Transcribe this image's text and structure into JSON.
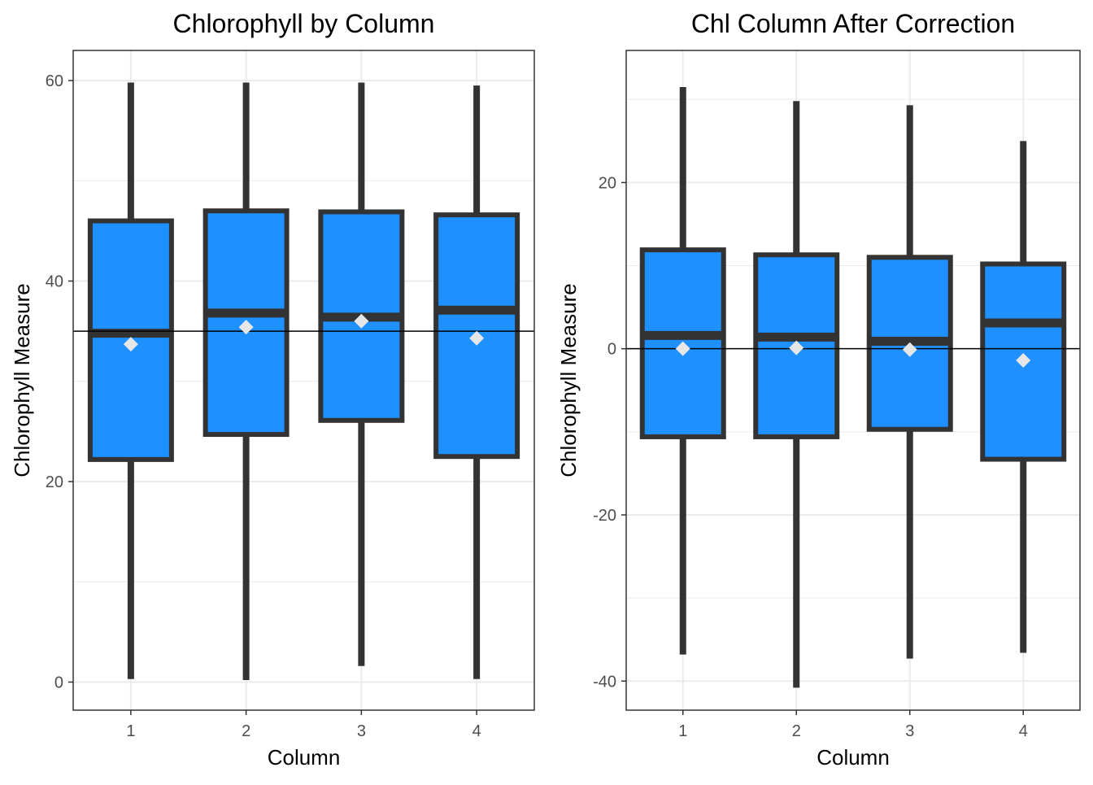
{
  "colors": {
    "box_fill": "#1e90ff",
    "box_outline": "#333333",
    "mean_marker": "#e6e6e6",
    "reference_line": "#000000",
    "grid": "#ebebeb",
    "panel_border": "#333333"
  },
  "chart_data": [
    {
      "type": "box",
      "title": "Chlorophyll by Column",
      "xlabel": "Column",
      "ylabel": "Chlorophyll Measure",
      "categories": [
        "1",
        "2",
        "3",
        "4"
      ],
      "ylim": [
        -2.8,
        63
      ],
      "yticks": [
        0,
        20,
        40,
        60
      ],
      "grid": true,
      "reference_line": 35,
      "boxes": [
        {
          "category": "1",
          "min": 0.3,
          "q1": 22.2,
          "median": 34.8,
          "q3": 46,
          "max": 59.8,
          "mean": 33.7
        },
        {
          "category": "2",
          "min": 0.2,
          "q1": 24.7,
          "median": 36.8,
          "q3": 47,
          "max": 59.8,
          "mean": 35.4
        },
        {
          "category": "3",
          "min": 1.6,
          "q1": 26.1,
          "median": 36.4,
          "q3": 46.9,
          "max": 59.8,
          "mean": 36
        },
        {
          "category": "4",
          "min": 0.3,
          "q1": 22.5,
          "median": 37.1,
          "q3": 46.6,
          "max": 59.5,
          "mean": 34.3
        }
      ]
    },
    {
      "type": "box",
      "title": "Chl Column After Correction",
      "xlabel": "Column",
      "ylabel": "Chlorophyll Measure",
      "categories": [
        "1",
        "2",
        "3",
        "4"
      ],
      "ylim": [
        -43.5,
        35.9
      ],
      "yticks": [
        -40,
        -20,
        0,
        20
      ],
      "grid": true,
      "reference_line": 0,
      "boxes": [
        {
          "category": "1",
          "min": -36.8,
          "q1": -10.6,
          "median": 1.6,
          "q3": 11.9,
          "max": 31.5,
          "mean": 0
        },
        {
          "category": "2",
          "min": -40.8,
          "q1": -10.6,
          "median": 1.4,
          "q3": 11.3,
          "max": 29.8,
          "mean": 0.1
        },
        {
          "category": "3",
          "min": -37.3,
          "q1": -9.7,
          "median": 0.9,
          "q3": 11,
          "max": 29.3,
          "mean": -0.1
        },
        {
          "category": "4",
          "min": -36.6,
          "q1": -13.3,
          "median": 3.1,
          "q3": 10.2,
          "max": 25,
          "mean": -1.4
        }
      ]
    }
  ]
}
